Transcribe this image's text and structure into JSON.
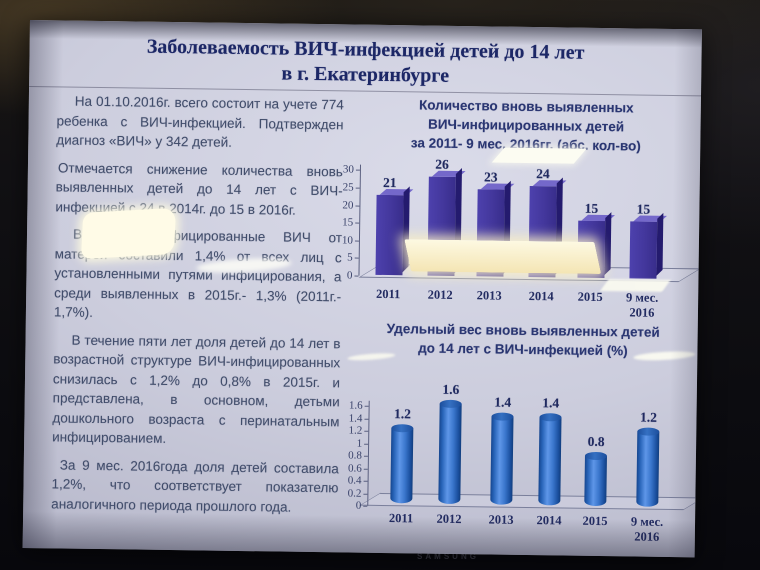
{
  "device": {
    "brand_label": "SAMSUNG"
  },
  "slide": {
    "title_line1": "Заболеваемость ВИЧ-инфекцией детей до 14 лет",
    "title_line2": "в г. Екатеринбурге",
    "paragraphs": [
      "На 01.10.2016г. всего состоит на учете 774 ребенка с ВИЧ-инфекцией. Подтвержден диагноз «ВИЧ» у 342 детей.",
      "Отмечается снижение количества вновь выявленных детей до 14 лет с ВИЧ-инфекцией с 24 в 2014г. до 15 в 2016г.",
      "В 2016г. инфицированные ВИЧ от матерей составили 1,4% от всех лиц с установленными путями инфицирования, а среди выявленных в 2015г.- 1,3% (2011г.- 1,7%).",
      "В течение пяти лет доля детей до 14 лет в возрастной структуре ВИЧ-инфицированных снизилась с 1,2% до 0,8% в 2015г. и представлена, в основном, детьми дошкольного возраста с перинатальным инфицированием.",
      "За 9 мес. 2016года доля детей составила 1,2%, что соответствует показателю аналогичного периода прошлого года."
    ]
  },
  "chart_data": [
    {
      "type": "bar",
      "style": "3d-box",
      "title": "Количество вновь выявленных\nВИЧ-инфицированных детей\nза 2011- 9 мес. 2016гг. (абс. кол-во)",
      "categories": [
        "2011",
        "2012",
        "2013",
        "2014",
        "2015",
        "9 мес.\n2016"
      ],
      "values": [
        21,
        26,
        23,
        24,
        15,
        15
      ],
      "value_labels": [
        "21",
        "26",
        "23",
        "24",
        "15",
        "15"
      ],
      "xlabel": "",
      "ylabel": "",
      "ylim": [
        0,
        30
      ],
      "yticks": [
        "0",
        "5",
        "10",
        "15",
        "20",
        "25",
        "30"
      ],
      "grid": false,
      "legend": "none",
      "bar_color": "#43379c"
    },
    {
      "type": "bar",
      "style": "cylinder",
      "title": "Удельный вес вновь выявленных детей\nдо 14 лет с ВИЧ-инфекцией (%)",
      "categories": [
        "2011",
        "2012",
        "2013",
        "2014",
        "2015",
        "9 мес.\n2016"
      ],
      "values": [
        1.2,
        1.6,
        1.4,
        1.4,
        0.8,
        1.2
      ],
      "value_labels": [
        "1.2",
        "1.6",
        "1.4",
        "1.4",
        "0.8",
        "1.2"
      ],
      "xlabel": "",
      "ylabel": "",
      "ylim": [
        0,
        1.6
      ],
      "yticks": [
        "0",
        "0.2",
        "0.4",
        "0.6",
        "0.8",
        "1",
        "1.2",
        "1.4",
        "1.6"
      ],
      "grid": false,
      "legend": "none",
      "bar_color": "#2f6fc4"
    }
  ]
}
